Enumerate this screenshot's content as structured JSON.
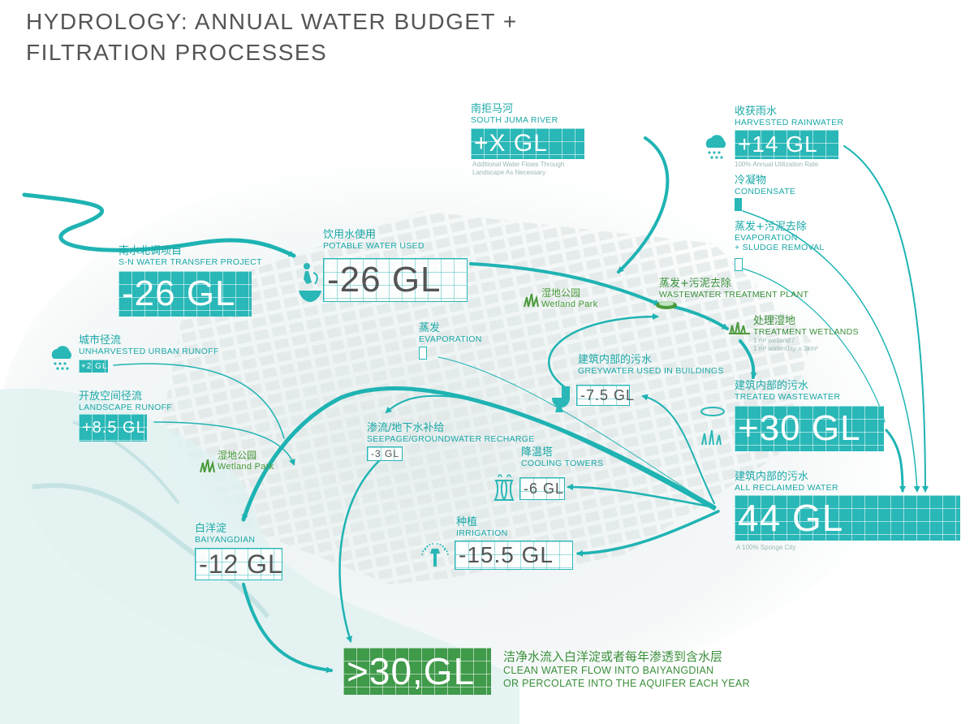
{
  "title": {
    "line1": "HYDROLOGY: ANNUAL WATER BUDGET +",
    "line2": "FILTRATION PROCESSES"
  },
  "colors": {
    "teal": "#2ab7b7",
    "green": "#3f9a4a",
    "grey_text": "#555555"
  },
  "nodes": {
    "south_juma": {
      "cn": "南拒马河",
      "en": "SOUTH JUMA RIVER",
      "value": "+X GL",
      "note1": "Additional Water Flows Through",
      "note2": "Landscape As Necessary"
    },
    "harvested_rain": {
      "cn": "收获雨水",
      "en": "HARVESTED RAINWATER",
      "value": "+14 GL",
      "note": "100% Annual Utilization Rate",
      "icon": "rain-cloud-icon"
    },
    "condensate": {
      "cn": "冷凝物",
      "en": "CONDENSATE"
    },
    "evap_sludge_top": {
      "cn": "蒸发+污泥去除",
      "en1": "EVAPORATION",
      "en2": "+ SLUDGE REMOVAL"
    },
    "sn_transfer": {
      "cn": "南水北调项目",
      "en": "S-N WATER TRANSFER PROJECT",
      "value": "-26 GL"
    },
    "potable": {
      "cn": "饮用水使用",
      "en": "POTABLE WATER USED",
      "value": "-26 GL",
      "icon": "drinking-fountain-icon"
    },
    "wetland_park_1": {
      "cn": "湿地公园",
      "en": "Wetland Park",
      "icon": "grass-icon"
    },
    "wwtp": {
      "cn": "蒸发+污泥去除",
      "en": "WASTEWATER TREATMENT PLANT",
      "icon": "treatment-plant-icon"
    },
    "treatment_wetlands": {
      "cn": "处理湿地",
      "en": "TREATMENT WETLANDS",
      "note1": "1 m² wetland /",
      "note2": "1 m³ water/day = 3km²",
      "icon": "wetland-icon"
    },
    "urban_runoff": {
      "cn": "城市径流",
      "en": "UNHARVESTED URBAN RUNOFF",
      "value": "+2 GL",
      "icon": "rain-cloud-icon"
    },
    "evaporation": {
      "cn": "蒸发",
      "en": "EVAPORATION"
    },
    "greywater": {
      "cn": "建筑内部的污水",
      "en": "GREYWATER USED IN BUILDINGS",
      "value": "-7.5 GL",
      "icon": "toilet-icon"
    },
    "treated_ww": {
      "cn": "建筑内部的污水",
      "en": "TREATED WASTEWATER",
      "value": "+30 GL"
    },
    "landscape_runoff": {
      "cn": "开放空间径流",
      "en": "LANDSCAPE RUNOFF",
      "value": "+8.5 GL"
    },
    "wetland_park_2": {
      "cn": "湿地公园",
      "en": "Wetland Park",
      "icon": "grass-icon"
    },
    "seepage": {
      "cn": "渗流/地下水补给",
      "en": "SEEPAGE/GROUNDWATER RECHARGE",
      "value": "-3 GL"
    },
    "cooling": {
      "cn": "降温塔",
      "en": "COOLING TOWERS",
      "value": "-6 GL",
      "icon": "cooling-tower-icon"
    },
    "reclaimed": {
      "cn": "建筑内部的污水",
      "en": "ALL RECLAIMED WATER",
      "value": "44 GL",
      "note": "A 100% Sponge City"
    },
    "baiyangdian": {
      "cn": "白洋淀",
      "en": "BAIYANGDIAN",
      "value": "-12 GL"
    },
    "irrigation": {
      "cn": "种植",
      "en": "IRRIGATION",
      "value": "-15.5 GL",
      "icon": "sprinkler-icon"
    },
    "clean_flow": {
      "value": ">30,GL",
      "cn": "洁净水流入白洋淀或者每年渗透到含水层",
      "en1": "CLEAN WATER FLOW INTO BAIYANGDIAN",
      "en2": "OR PERCOLATE INTO THE AQUIFER EACH YEAR"
    }
  }
}
